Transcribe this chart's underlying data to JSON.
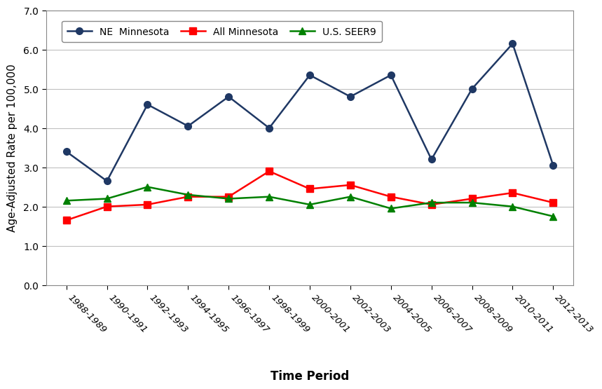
{
  "time_periods": [
    "1988-1989",
    "1990-1991",
    "1992-1993",
    "1994-1995",
    "1996-1997",
    "1998-1999",
    "2000-2001",
    "2002-2003",
    "2004-2005",
    "2006-2007",
    "2008-2009",
    "2010-2011",
    "2012-2013"
  ],
  "ne_minnesota": [
    3.4,
    2.65,
    4.6,
    4.05,
    4.8,
    4.0,
    5.35,
    4.8,
    5.35,
    3.2,
    5.0,
    6.15,
    3.05
  ],
  "all_minnesota": [
    1.65,
    2.0,
    2.05,
    2.25,
    2.25,
    2.9,
    2.45,
    2.55,
    2.25,
    2.05,
    2.2,
    2.35,
    2.1
  ],
  "us_seer9": [
    2.15,
    2.2,
    2.5,
    2.3,
    2.2,
    2.25,
    2.05,
    2.25,
    1.95,
    2.1,
    2.1,
    2.0,
    1.75
  ],
  "ne_color": "#1F3864",
  "all_mn_color": "#FF0000",
  "us_color": "#008000",
  "ylabel": "Age-Adjusted Rate per 100,000",
  "xlabel": "Time Period",
  "ylim": [
    0.0,
    7.0
  ],
  "yticks": [
    0.0,
    1.0,
    2.0,
    3.0,
    4.0,
    5.0,
    6.0,
    7.0
  ],
  "legend_labels": [
    "NE  Minnesota",
    "All Minnesota",
    "U.S. SEER9"
  ],
  "background_color": "#FFFFFF",
  "grid_color": "#C0C0C0"
}
